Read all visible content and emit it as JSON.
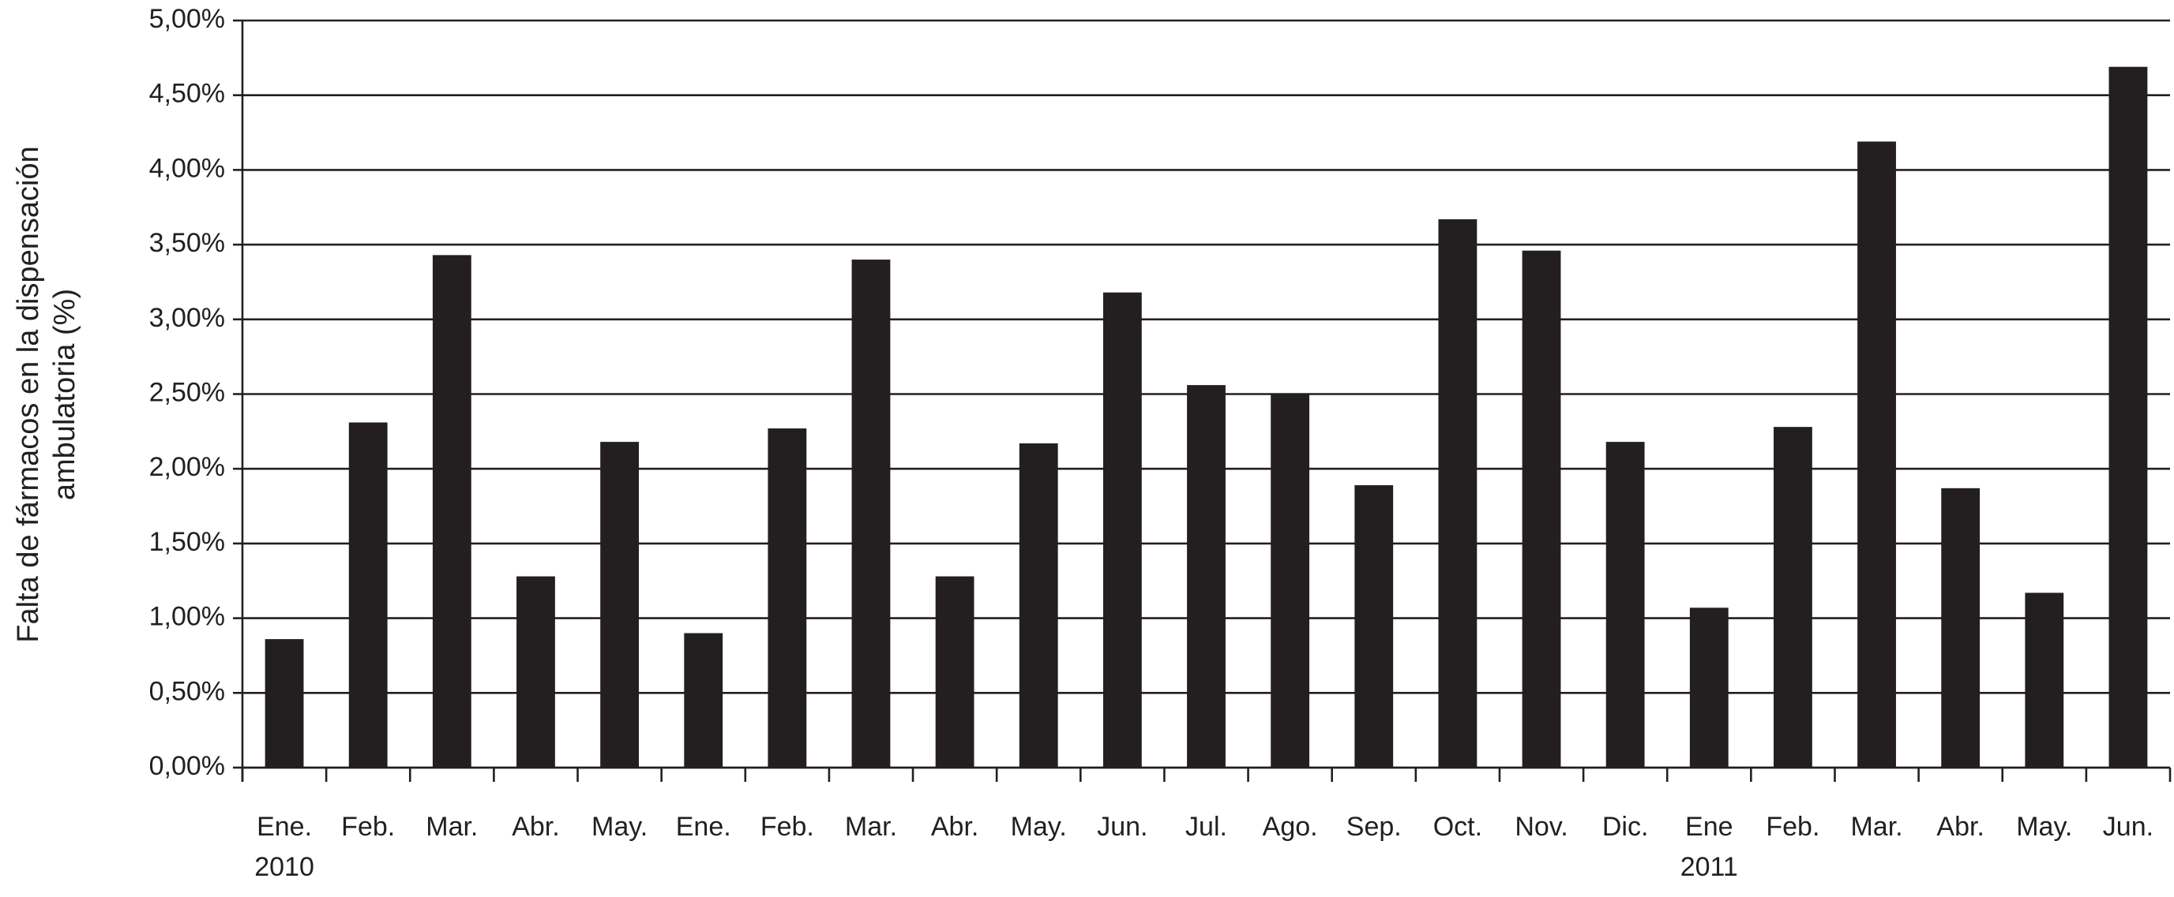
{
  "chart_data": {
    "type": "bar",
    "ylabel": [
      "Falta de fármacos en la dispensación",
      "ambulatoria (%)"
    ],
    "categories": [
      "Ene.",
      "Feb.",
      "Mar.",
      "Abr.",
      "May.",
      "Ene.",
      "Feb.",
      "Mar.",
      "Abr.",
      "May.",
      "Jun.",
      "Jul.",
      "Ago.",
      "Sep.",
      "Oct.",
      "Nov.",
      "Dic.",
      "Ene",
      "Feb.",
      "Mar.",
      "Abr.",
      "May.",
      "Jun."
    ],
    "x_groups": [
      {
        "label": "2010",
        "start": 0
      },
      {
        "label": "2011",
        "start": 17
      }
    ],
    "values": [
      0.86,
      2.31,
      3.43,
      1.28,
      2.18,
      0.9,
      2.27,
      3.4,
      1.28,
      2.17,
      3.18,
      2.56,
      2.5,
      1.89,
      3.67,
      3.46,
      2.18,
      1.07,
      2.28,
      4.19,
      1.87,
      1.17,
      4.69
    ],
    "color": "#231f20",
    "ylim": [
      0,
      5
    ],
    "yticks": [
      {
        "value": 0,
        "label": "0,00%"
      },
      {
        "value": 0.5,
        "label": "0,50%"
      },
      {
        "value": 1,
        "label": "1,00%"
      },
      {
        "value": 1.5,
        "label": "1,50%"
      },
      {
        "value": 2,
        "label": "2,00%"
      },
      {
        "value": 2.5,
        "label": "2,50%"
      },
      {
        "value": 3,
        "label": "3,00%"
      },
      {
        "value": 3.5,
        "label": "3,50%"
      },
      {
        "value": 4,
        "label": "4,00%"
      },
      {
        "value": 4.5,
        "label": "4,50%"
      },
      {
        "value": 5,
        "label": "5,00%"
      }
    ],
    "grid": true
  }
}
